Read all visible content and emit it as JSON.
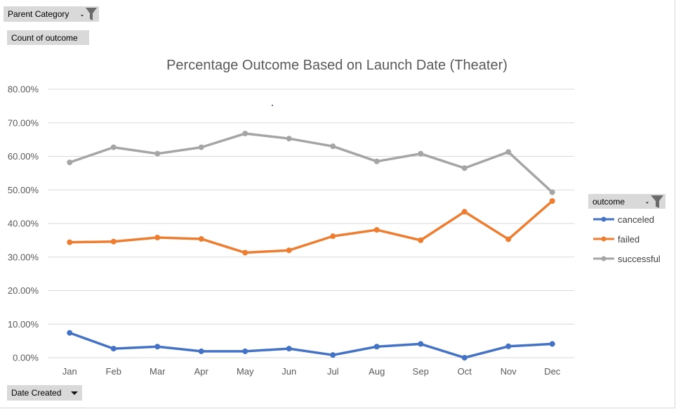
{
  "field_buttons": {
    "parent_category": "Parent Category",
    "count_of_outcome": "Count of outcome",
    "date_created": "Date Created",
    "outcome": "outcome"
  },
  "chart_data": {
    "type": "line",
    "title": "Percentage Outcome Based on Launch Date (Theater)",
    "categories": [
      "Jan",
      "Feb",
      "Mar",
      "Apr",
      "May",
      "Jun",
      "Jul",
      "Aug",
      "Sep",
      "Oct",
      "Nov",
      "Dec"
    ],
    "y_ticks": [
      "0.00%",
      "10.00%",
      "20.00%",
      "30.00%",
      "40.00%",
      "50.00%",
      "60.00%",
      "70.00%",
      "80.00%"
    ],
    "ylim": [
      0,
      80
    ],
    "grid": true,
    "legend_position": "right",
    "series": [
      {
        "name": "canceled",
        "color": "#4472C4",
        "values": [
          7.4,
          2.7,
          3.3,
          1.9,
          1.9,
          2.7,
          0.8,
          3.3,
          4.1,
          0.0,
          3.4,
          4.1
        ]
      },
      {
        "name": "failed",
        "color": "#ED7D31",
        "values": [
          34.4,
          34.6,
          35.8,
          35.4,
          31.3,
          32.0,
          36.2,
          38.1,
          35.0,
          43.5,
          35.3,
          46.7
        ]
      },
      {
        "name": "successful",
        "color": "#A5A5A5",
        "values": [
          58.2,
          62.7,
          60.8,
          62.7,
          66.8,
          65.3,
          63.0,
          58.5,
          60.8,
          56.5,
          61.3,
          49.3
        ]
      }
    ]
  }
}
